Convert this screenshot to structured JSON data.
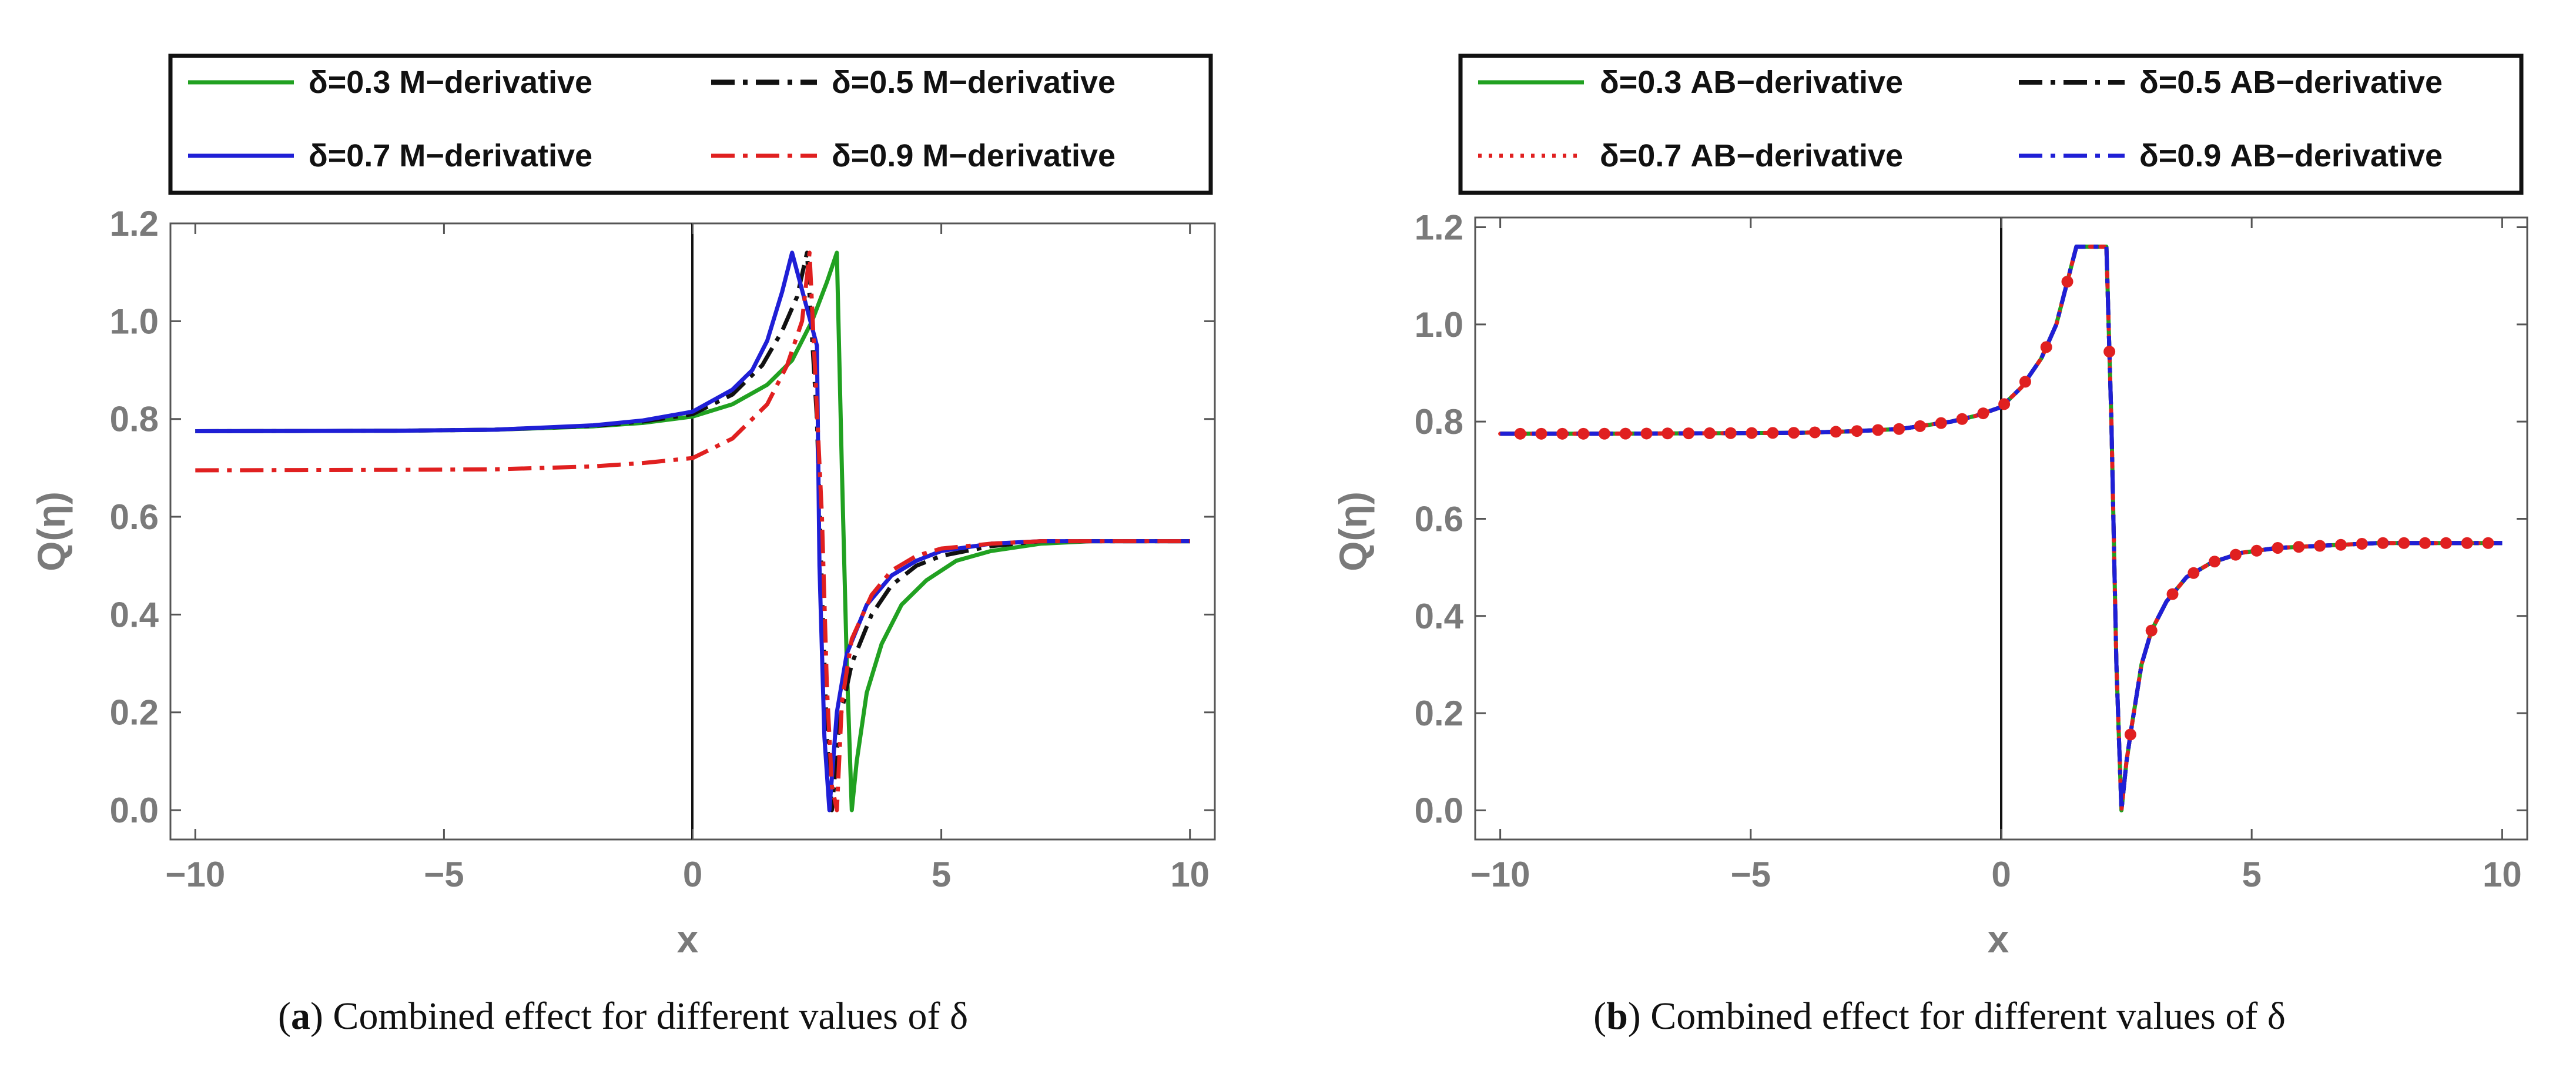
{
  "chart_data": [
    {
      "type": "line",
      "panel_label": "a",
      "caption": "Combined effect for different values of δ",
      "xlabel": "x",
      "ylabel": "Q(η)",
      "xlim": [
        -10.5,
        10.5
      ],
      "ylim": [
        -0.06,
        1.2
      ],
      "xticks": [
        -10,
        -5,
        0,
        5,
        10
      ],
      "xtick_labels": [
        "−10",
        "−5",
        "0",
        "5",
        "10"
      ],
      "yticks": [
        0.0,
        0.2,
        0.4,
        0.6,
        0.8,
        1.0,
        1.2
      ],
      "ytick_labels": [
        "0.0",
        "0.2",
        "0.4",
        "0.6",
        "0.8",
        "1.0",
        "1.2"
      ],
      "legend_position": "top",
      "series": [
        {
          "name": "δ=0.3 M−derivative",
          "color": "#21a121",
          "style": "solid",
          "x": [
            -10,
            -6,
            -4,
            -2,
            -1,
            0,
            0.8,
            1.5,
            2.0,
            2.4,
            2.7,
            2.9,
            3.0,
            3.1,
            3.2,
            3.3,
            3.5,
            3.8,
            4.2,
            4.7,
            5.3,
            6.0,
            7.0,
            8.0,
            10.0
          ],
          "y": [
            0.775,
            0.776,
            0.778,
            0.785,
            0.792,
            0.805,
            0.83,
            0.87,
            0.92,
            1.0,
            1.08,
            1.14,
            0.7,
            0.3,
            0.0,
            0.1,
            0.24,
            0.34,
            0.42,
            0.47,
            0.51,
            0.53,
            0.545,
            0.55,
            0.55
          ]
        },
        {
          "name": "δ=0.5 M−derivative",
          "color": "#111111",
          "style": "dashdot",
          "x": [
            -10,
            -6,
            -4,
            -2,
            -1,
            0,
            0.8,
            1.4,
            1.8,
            2.1,
            2.3,
            2.5,
            2.6,
            2.7,
            2.8,
            2.95,
            3.2,
            3.6,
            4.0,
            4.5,
            5.0,
            6.0,
            7.0,
            8.0,
            10.0
          ],
          "y": [
            0.775,
            0.776,
            0.778,
            0.786,
            0.795,
            0.81,
            0.85,
            0.91,
            0.98,
            1.05,
            1.14,
            0.8,
            0.45,
            0.15,
            0.0,
            0.18,
            0.3,
            0.4,
            0.46,
            0.5,
            0.52,
            0.54,
            0.55,
            0.55,
            0.55
          ]
        },
        {
          "name": "δ=0.7 M−derivative",
          "color": "#1f1fd6",
          "style": "solid",
          "x": [
            -10,
            -6,
            -4,
            -2,
            -1,
            0,
            0.8,
            1.2,
            1.5,
            1.8,
            2.0,
            2.5,
            2.55,
            2.65,
            2.75,
            2.9,
            3.1,
            3.5,
            4.0,
            4.5,
            5.0,
            6.0,
            7.0,
            8.0,
            10.0
          ],
          "y": [
            0.775,
            0.776,
            0.778,
            0.787,
            0.797,
            0.815,
            0.86,
            0.9,
            0.96,
            1.06,
            1.14,
            0.95,
            0.5,
            0.15,
            0.0,
            0.2,
            0.32,
            0.42,
            0.48,
            0.51,
            0.53,
            0.545,
            0.55,
            0.55,
            0.55
          ]
        },
        {
          "name": "δ=0.9 M−derivative",
          "color": "#e02020",
          "style": "dashdot",
          "x": [
            -10,
            -6,
            -4,
            -2,
            -1,
            0,
            0.8,
            1.5,
            1.9,
            2.2,
            2.35,
            2.6,
            2.7,
            2.8,
            2.9,
            3.0,
            3.2,
            3.6,
            4.0,
            4.5,
            5.0,
            6.0,
            7.0,
            8.0,
            10.0
          ],
          "y": [
            0.695,
            0.696,
            0.697,
            0.703,
            0.71,
            0.72,
            0.76,
            0.83,
            0.91,
            1.0,
            1.14,
            0.6,
            0.25,
            0.05,
            0.0,
            0.22,
            0.35,
            0.44,
            0.49,
            0.52,
            0.535,
            0.545,
            0.55,
            0.55,
            0.55
          ]
        }
      ]
    },
    {
      "type": "line",
      "panel_label": "b",
      "caption": "Combined effect for different values of δ",
      "xlabel": "x",
      "ylabel": "Q(η)",
      "xlim": [
        -10.5,
        10.5
      ],
      "ylim": [
        -0.06,
        1.22
      ],
      "xticks": [
        -10,
        -5,
        0,
        5,
        10
      ],
      "xtick_labels": [
        "−10",
        "−5",
        "0",
        "5",
        "10"
      ],
      "yticks": [
        0.0,
        0.2,
        0.4,
        0.6,
        0.8,
        1.0,
        1.2
      ],
      "ytick_labels": [
        "0.0",
        "0.2",
        "0.4",
        "0.6",
        "0.8",
        "1.0",
        "1.2"
      ],
      "legend_position": "top",
      "shared_curve": {
        "x": [
          -10,
          -8,
          -6,
          -4,
          -3,
          -2,
          -1,
          -0.5,
          0,
          0.4,
          0.8,
          1.1,
          1.3,
          1.5,
          2.1,
          2.2,
          2.3,
          2.4,
          2.5,
          2.6,
          2.8,
          3.0,
          3.3,
          3.7,
          4.2,
          4.8,
          5.5,
          6.5,
          7.5,
          8.5,
          10.0
        ],
        "y": [
          0.775,
          0.775,
          0.776,
          0.777,
          0.78,
          0.785,
          0.8,
          0.812,
          0.83,
          0.87,
          0.93,
          1.0,
          1.08,
          1.16,
          1.16,
          0.8,
          0.3,
          0.0,
          0.1,
          0.17,
          0.3,
          0.37,
          0.43,
          0.48,
          0.51,
          0.53,
          0.54,
          0.545,
          0.55,
          0.55,
          0.55
        ]
      },
      "series": [
        {
          "name": "δ=0.3 AB−derivative",
          "color": "#21a121",
          "style": "solid"
        },
        {
          "name": "δ=0.5 AB−derivative",
          "color": "#111111",
          "style": "dashdot"
        },
        {
          "name": "δ=0.7 AB−derivative",
          "color": "#e02020",
          "style": "dotted"
        },
        {
          "name": "δ=0.9 AB−derivative",
          "color": "#1f1fd6",
          "style": "dashdot"
        }
      ]
    }
  ]
}
